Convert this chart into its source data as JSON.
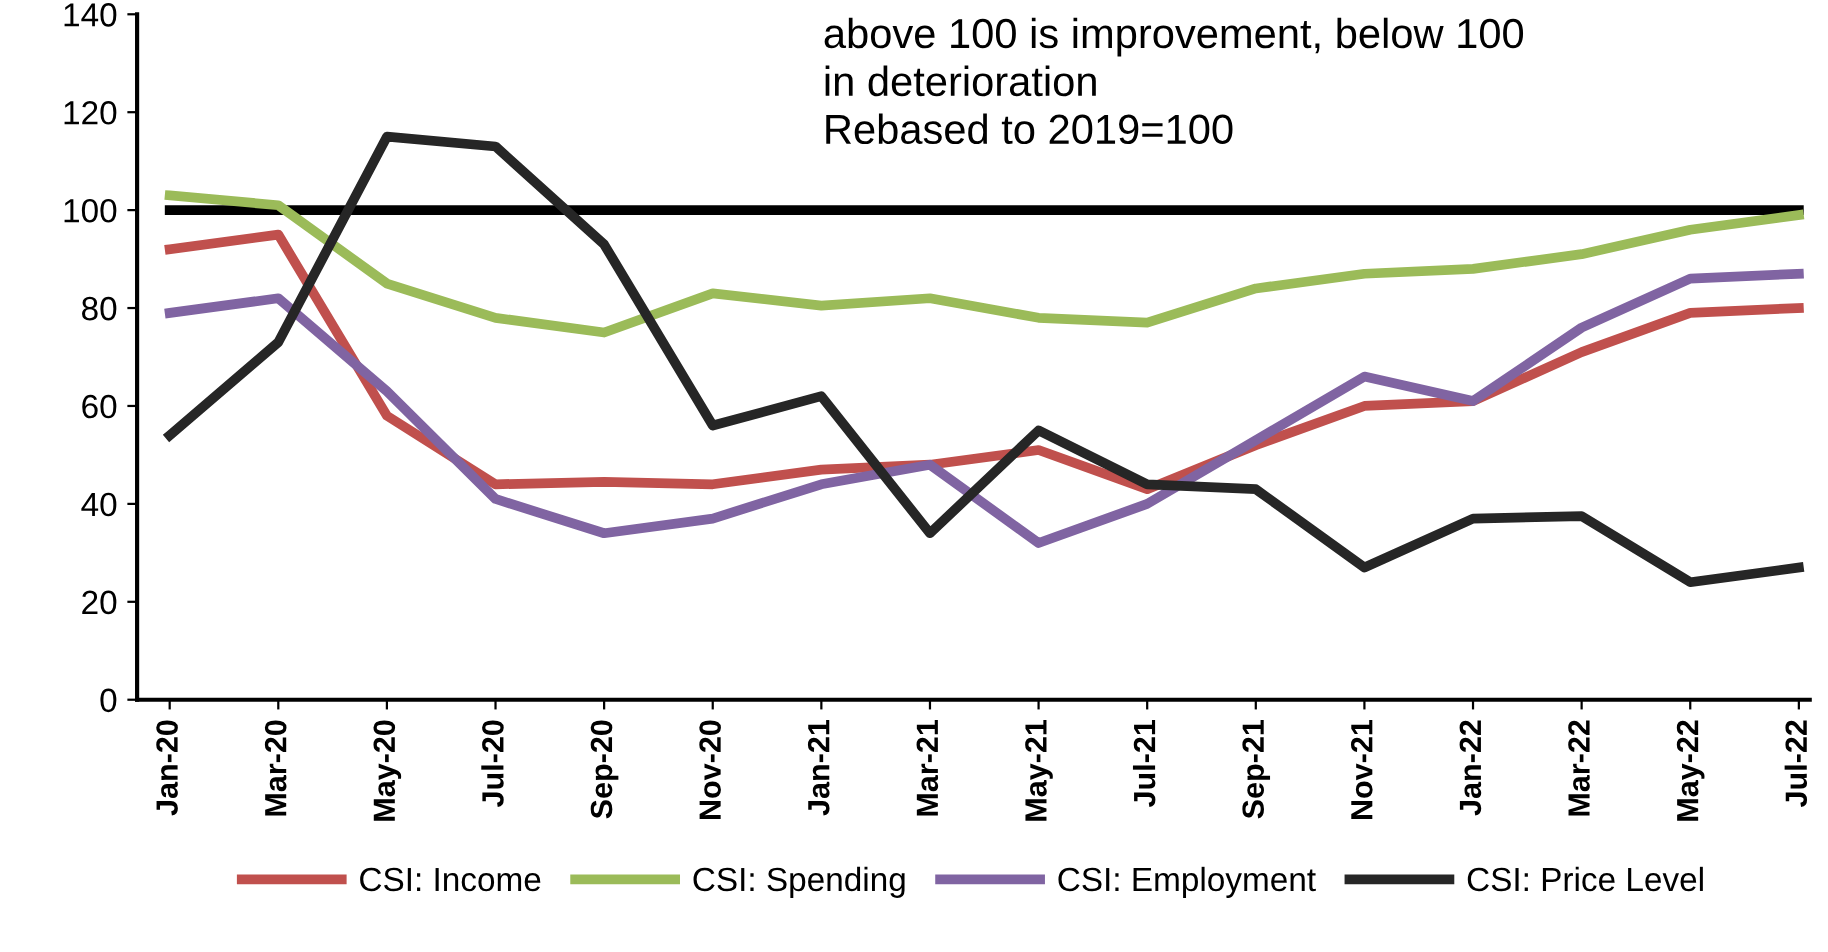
{
  "chart_data": {
    "type": "line",
    "categories": [
      "Jan-20",
      "Mar-20",
      "May-20",
      "Jul-20",
      "Sep-20",
      "Nov-20",
      "Jan-21",
      "Mar-21",
      "May-21",
      "Jul-21",
      "Sep-21",
      "Nov-21",
      "Jan-22",
      "Mar-22",
      "May-22",
      "Jul-22"
    ],
    "series": [
      {
        "name": "CSI: Income",
        "color": "#c0504d",
        "values": [
          92,
          95,
          58,
          44,
          44.5,
          44,
          47,
          48,
          51,
          43,
          52,
          60,
          61,
          71,
          79,
          80
        ]
      },
      {
        "name": "CSI: Spending",
        "color": "#9bbb59",
        "values": [
          103,
          101,
          85,
          78,
          75,
          83,
          80.5,
          82,
          78,
          77,
          84,
          87,
          88,
          91,
          96,
          99
        ]
      },
      {
        "name": "CSI: Employment",
        "color": "#8064a2",
        "values": [
          79,
          82,
          63,
          41,
          34,
          37,
          44,
          48,
          32,
          40,
          53,
          66,
          61,
          76,
          86,
          87
        ]
      },
      {
        "name": "CSI: Price Level",
        "color": "#262626",
        "values": [
          54,
          73,
          115,
          113,
          93,
          56,
          62,
          34,
          55,
          44,
          43,
          27,
          37,
          37.5,
          24,
          27
        ]
      }
    ],
    "ylim": [
      0,
      140
    ],
    "yticks": [
      0,
      20,
      40,
      60,
      80,
      100,
      120,
      140
    ],
    "grid": false,
    "legend": "bottom",
    "marker": "none",
    "line_style": "solid",
    "ref_lines": [
      {
        "axis": "y",
        "value": 100,
        "color": "#000000",
        "line_style": "solid"
      }
    ],
    "annotations": [
      "above 100 is improvement, below 100\nin deterioration\nRebased to 2019=100"
    ]
  }
}
